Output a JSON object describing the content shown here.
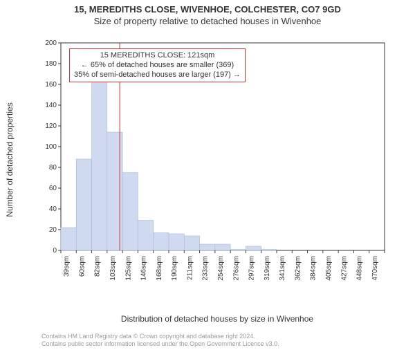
{
  "title": {
    "address": "15, MEREDITHS CLOSE, WIVENHOE, COLCHESTER, CO7 9GD",
    "subtitle": "Size of property relative to detached houses in Wivenhoe"
  },
  "chart": {
    "type": "histogram",
    "ylabel": "Number of detached properties",
    "xlabel": "Distribution of detached houses by size in Wivenhoe",
    "ylim": [
      0,
      200
    ],
    "ytick_step": 20,
    "x_categories": [
      "39sqm",
      "60sqm",
      "82sqm",
      "103sqm",
      "125sqm",
      "146sqm",
      "168sqm",
      "190sqm",
      "211sqm",
      "233sqm",
      "254sqm",
      "276sqm",
      "297sqm",
      "319sqm",
      "341sqm",
      "362sqm",
      "384sqm",
      "405sqm",
      "427sqm",
      "448sqm",
      "470sqm"
    ],
    "values": [
      22,
      88,
      187,
      114,
      75,
      29,
      17,
      16,
      14,
      6,
      6,
      1,
      4,
      1,
      0,
      0,
      0,
      0,
      0,
      0,
      0
    ],
    "bar_fill": "#cfdaf0",
    "bar_stroke": "#a9b9d9",
    "axis_color": "#333333",
    "grid_color": "#cccccc",
    "tick_font_size": 10,
    "background": "#ffffff",
    "marker": {
      "value_sqm": 121,
      "line_color": "#cc3333",
      "line_width": 1
    },
    "annotation": {
      "border_color": "#cc3333",
      "background": "#ffffff",
      "lines": [
        "15 MEREDITHS CLOSE: 121sqm",
        "← 65% of detached houses are smaller (369)",
        "35% of semi-detached houses are larger (197) →"
      ]
    }
  },
  "footer": {
    "line1": "Contains HM Land Registry data © Crown copyright and database right 2024.",
    "line2": "Contains public sector information licensed under the Open Government Licence v3.0."
  }
}
